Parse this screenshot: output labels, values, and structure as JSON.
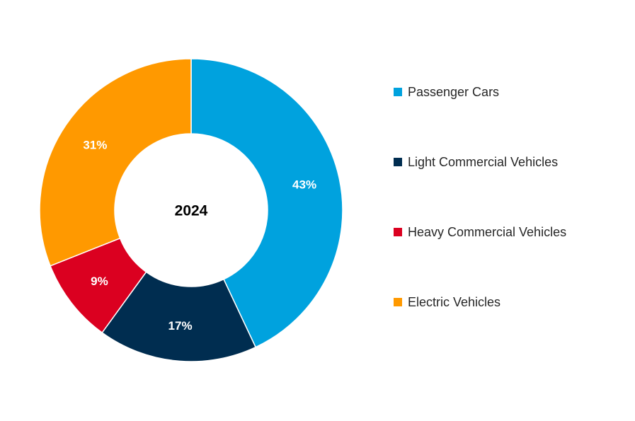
{
  "chart_data": {
    "type": "pie",
    "variant": "donut",
    "center_label": "2024",
    "categories": [
      "Passenger Cars",
      "Light Commercial Vehicles",
      "Heavy Commercial Vehicles",
      "Electric Vehicles"
    ],
    "values": [
      43,
      17,
      9,
      31
    ],
    "data_labels": [
      "43%",
      "17%",
      "9%",
      "31%"
    ],
    "colors": [
      "#00A2DE",
      "#002D50",
      "#DB0020",
      "#FF9900"
    ],
    "legend_position": "right"
  }
}
